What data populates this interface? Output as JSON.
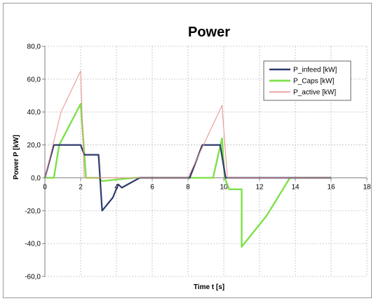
{
  "chart_data": {
    "type": "line",
    "title": "Power",
    "xlabel": "Time t [s]",
    "ylabel": "Power P [kW]",
    "xlim": [
      0,
      18
    ],
    "ylim": [
      -60,
      80
    ],
    "x_ticks": [
      0,
      2,
      4,
      6,
      8,
      10,
      12,
      14,
      16,
      18
    ],
    "x_tick_labels": [
      "0",
      "2",
      "4",
      "6",
      "8",
      "10",
      "12",
      "14",
      "16",
      "18"
    ],
    "y_ticks": [
      80,
      60,
      40,
      20,
      0,
      -20,
      -40,
      -60
    ],
    "y_tick_labels": [
      "80,0",
      "60,0",
      "40,0",
      "20,0",
      "0,0",
      "-20,0",
      "-40,0",
      "-60,0"
    ],
    "grid": true,
    "legend_position": "top-right",
    "series": [
      {
        "name": "P_infeed [kW]",
        "color": "#2e3a6e",
        "x": [
          0,
          0.5,
          2.0,
          2.2,
          3.0,
          3.2,
          3.8,
          4.1,
          4.3,
          5.3,
          8.0,
          8.1,
          8.8,
          9.8,
          10.1,
          16.0
        ],
        "y": [
          0,
          20,
          20,
          14,
          14,
          -20,
          -12,
          -4,
          -6,
          0,
          0,
          0,
          20,
          20,
          0,
          0
        ]
      },
      {
        "name": "P_Caps [kW]",
        "color": "#7ee04a",
        "x": [
          0,
          0.5,
          0.8,
          2.0,
          2.3,
          3.0,
          3.2,
          5.0,
          8.0,
          9.0,
          9.4,
          9.9,
          10.05,
          10.3,
          11.0,
          11.0,
          12.4,
          13.7,
          16.0
        ],
        "y": [
          0,
          0,
          20,
          45,
          0,
          0,
          -2,
          0,
          0,
          0,
          0,
          24,
          0,
          -7,
          -7,
          -42,
          -23,
          0,
          0
        ]
      },
      {
        "name": "P_active [kW]",
        "color": "#e8908a",
        "x": [
          0,
          0.9,
          2.0,
          2.2,
          5.0,
          8.0,
          9.9,
          10.2,
          16.0
        ],
        "y": [
          0,
          40,
          65,
          0,
          0,
          0,
          44,
          0,
          0
        ]
      }
    ]
  }
}
